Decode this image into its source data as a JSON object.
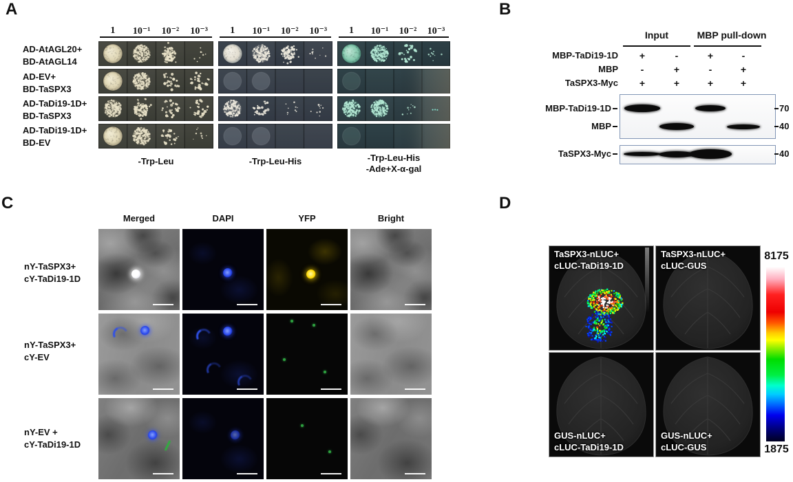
{
  "colors": {
    "teal_spot": "#8fdcc8",
    "cream_spot": "#e6dfc4",
    "dapi_blue": "#2342ea",
    "yfp_yellow": "#ffd800",
    "bifc_green": "#38c84e",
    "blot_border": "#8195b5",
    "scale_max_color": "#ffffff",
    "scale_min_color": "#000020"
  },
  "panels": {
    "A": {
      "label": "A",
      "dilutions": [
        "1",
        "10⁻¹",
        "10⁻²",
        "10⁻³"
      ],
      "rows": [
        {
          "line1": "AD-AtAGL20+",
          "line2": "BD-AtAGL14"
        },
        {
          "line1": "AD-EV+",
          "line2": "BD-TaSPX3"
        },
        {
          "line1": "AD-TaDi19-1D+",
          "line2": "BD-TaSPX3"
        },
        {
          "line1": "AD-TaDi19-1D+",
          "line2": "BD-EV"
        }
      ],
      "plates": [
        {
          "medium": [
            "-Trp-Leu"
          ],
          "palette": "cream1",
          "spots": [
            [
              "solid",
              "speckled",
              "patch",
              "sparse"
            ],
            [
              "solid",
              "speckled",
              "scatter",
              "scatter"
            ],
            [
              "speckled",
              "patch",
              "scatter",
              "scatter"
            ],
            [
              "solid",
              "speckled",
              "scatter",
              "sparse"
            ]
          ]
        },
        {
          "medium": [
            "-Trp-Leu-His"
          ],
          "palette": "cream2",
          "spots": [
            [
              "solid",
              "speckled",
              "patch",
              "sparse"
            ],
            [
              "faint",
              "faint",
              "none",
              "none"
            ],
            [
              "speckled",
              "scatter",
              "sparse",
              "sparse"
            ],
            [
              "faint",
              "faint",
              "none",
              "none"
            ]
          ]
        },
        {
          "medium": [
            "-Trp-Leu-His",
            "-Ade+X-α-gal"
          ],
          "palette": "teal",
          "spots": [
            [
              "solid",
              "speckled",
              "scatter",
              "sparse"
            ],
            [
              "faint",
              "none",
              "none",
              "none"
            ],
            [
              "speckled",
              "speckled",
              "sparse",
              "dot"
            ],
            [
              "faint",
              "none",
              "none",
              "none"
            ]
          ]
        }
      ]
    },
    "B": {
      "label": "B",
      "group_headers": [
        "Input",
        "MBP pull-down"
      ],
      "condition_rows": [
        {
          "label": "MBP-TaDi19-1D",
          "values": [
            "+",
            "-",
            "+",
            "-"
          ]
        },
        {
          "label": "MBP",
          "values": [
            "-",
            "+",
            "-",
            "+"
          ]
        },
        {
          "label": "TaSPX3-Myc",
          "values": [
            "+",
            "+",
            "+",
            "+"
          ]
        }
      ],
      "blots": [
        {
          "bands": [
            {
              "label": "MBP-TaDi19-1D",
              "marker": "70",
              "lanes": [
                1,
                3
              ]
            },
            {
              "label": "MBP",
              "marker": "40",
              "lanes": [
                2,
                4
              ]
            }
          ]
        },
        {
          "bands": [
            {
              "label": "TaSPX3-Myc",
              "marker": "40",
              "lanes": [
                1,
                2,
                3
              ]
            }
          ]
        }
      ]
    },
    "C": {
      "label": "C",
      "columns": [
        "Merged",
        "DAPI",
        "YFP",
        "Bright"
      ],
      "rows": [
        {
          "line1": "nY-TaSPX3+",
          "line2": "cY-TaDi19-1D"
        },
        {
          "line1": "nY-TaSPX3+",
          "line2": "cY-EV"
        },
        {
          "line1": "nY-EV +",
          "line2": "cY-TaDi19-1D"
        }
      ]
    },
    "D": {
      "label": "D",
      "quadrants": [
        {
          "line1": "TaSPX3-nLUC+",
          "line2": "cLUC-TaDi19-1D",
          "label_pos": "top",
          "signal": true
        },
        {
          "line1": "TaSPX3-nLUC+",
          "line2": "cLUC-GUS",
          "label_pos": "top",
          "signal": false
        },
        {
          "line1": "GUS-nLUC+",
          "line2": "cLUC-TaDi19-1D",
          "label_pos": "bottom",
          "signal": false
        },
        {
          "line1": "GUS-nLUC+",
          "line2": "cLUC-GUS",
          "label_pos": "bottom",
          "signal": false
        }
      ],
      "colorbar": {
        "max": "8175",
        "min": "1875"
      }
    }
  }
}
